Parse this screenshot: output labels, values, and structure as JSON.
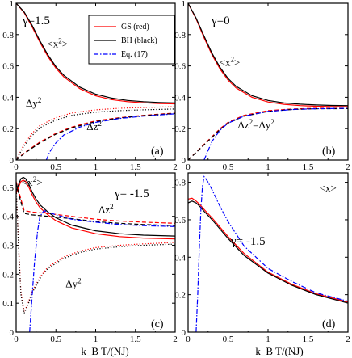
{
  "xlabel": "k_B T/(NJ)",
  "legend": [
    {
      "label": "GS (red)",
      "color": "#ff0000",
      "dash": "solid"
    },
    {
      "label": "BH (black)",
      "color": "#000000",
      "dash": "solid"
    },
    {
      "label": "Eq. (17)",
      "color": "#0000ff",
      "dash": "dashdot"
    }
  ],
  "chart_data": [
    {
      "type": "line",
      "panel": "(a)",
      "gamma_text": "γ=1.5",
      "xlim": [
        0,
        2
      ],
      "ylim": [
        0,
        1
      ],
      "xticks": [
        "0",
        "0.5",
        "1",
        "1.5",
        "2"
      ],
      "yticks": [
        "0",
        "0.2",
        "0.4",
        "0.6",
        "0.8",
        "1"
      ],
      "legend_position": "top-right",
      "annotations": [
        {
          "text": "<x²>",
          "x": 0.52,
          "y": 0.72
        },
        {
          "text": "Δy²",
          "x": 0.22,
          "y": 0.34
        },
        {
          "text": "Δz²",
          "x": 0.98,
          "y": 0.19
        }
      ],
      "series": [
        {
          "name": "<x²> GS",
          "color": "#ff0000",
          "dash": "solid",
          "x": [
            0,
            0.1,
            0.2,
            0.3,
            0.4,
            0.5,
            0.6,
            0.8,
            1.0,
            1.2,
            1.4,
            1.6,
            1.8,
            2.0
          ],
          "y": [
            1.0,
            0.94,
            0.85,
            0.75,
            0.66,
            0.585,
            0.53,
            0.455,
            0.41,
            0.385,
            0.372,
            0.365,
            0.36,
            0.358
          ]
        },
        {
          "name": "<x²> BH",
          "color": "#000000",
          "dash": "solid",
          "x": [
            0,
            0.1,
            0.2,
            0.3,
            0.4,
            0.5,
            0.6,
            0.8,
            1.0,
            1.2,
            1.4,
            1.6,
            1.8,
            2.0
          ],
          "y": [
            1.0,
            0.945,
            0.86,
            0.76,
            0.67,
            0.595,
            0.54,
            0.465,
            0.42,
            0.395,
            0.38,
            0.372,
            0.367,
            0.364
          ]
        },
        {
          "name": "Δy² GS",
          "color": "#ff0000",
          "dash": "dot",
          "x": [
            0,
            0.1,
            0.2,
            0.3,
            0.5,
            0.7,
            1.0,
            1.3,
            1.6,
            2.0
          ],
          "y": [
            0,
            0.1,
            0.17,
            0.22,
            0.27,
            0.3,
            0.32,
            0.33,
            0.335,
            0.34
          ]
        },
        {
          "name": "Δy² BH",
          "color": "#000000",
          "dash": "dot",
          "x": [
            0,
            0.1,
            0.2,
            0.3,
            0.5,
            0.7,
            1.0,
            1.3,
            1.6,
            2.0
          ],
          "y": [
            0,
            0.09,
            0.155,
            0.205,
            0.255,
            0.285,
            0.305,
            0.315,
            0.32,
            0.325
          ]
        },
        {
          "name": "Δz² GS",
          "color": "#ff0000",
          "dash": "dash",
          "x": [
            0,
            0.1,
            0.2,
            0.3,
            0.5,
            0.7,
            1.0,
            1.3,
            1.6,
            2.0
          ],
          "y": [
            0,
            0.045,
            0.08,
            0.115,
            0.17,
            0.21,
            0.25,
            0.27,
            0.285,
            0.3
          ]
        },
        {
          "name": "Δz² BH",
          "color": "#000000",
          "dash": "dash",
          "x": [
            0,
            0.1,
            0.2,
            0.3,
            0.5,
            0.7,
            1.0,
            1.3,
            1.6,
            2.0
          ],
          "y": [
            0,
            0.04,
            0.075,
            0.11,
            0.165,
            0.205,
            0.245,
            0.268,
            0.283,
            0.297
          ]
        },
        {
          "name": "Δz² Eq. (17)",
          "color": "#0000ff",
          "dash": "dashdot",
          "x": [
            0.38,
            0.42,
            0.5,
            0.6,
            0.8,
            1.0,
            1.3,
            1.6,
            2.0
          ],
          "y": [
            0,
            0.05,
            0.11,
            0.16,
            0.21,
            0.24,
            0.265,
            0.28,
            0.295
          ]
        }
      ]
    },
    {
      "type": "line",
      "panel": "(b)",
      "gamma_text": "γ=0",
      "xlim": [
        0,
        2
      ],
      "ylim": [
        0,
        1
      ],
      "xticks": [
        "0",
        "0.5",
        "1",
        "1.5",
        "2"
      ],
      "yticks": [
        "0",
        "0.2",
        "0.4",
        "0.6",
        "0.8",
        "1"
      ],
      "annotations": [
        {
          "text": "<x²>",
          "x": 0.52,
          "y": 0.6
        },
        {
          "text": "Δz²=Δy²",
          "x": 0.85,
          "y": 0.2
        }
      ],
      "series": [
        {
          "name": "<x²> GS",
          "color": "#ff0000",
          "dash": "solid",
          "x": [
            0,
            0.1,
            0.2,
            0.3,
            0.4,
            0.5,
            0.6,
            0.8,
            1.0,
            1.2,
            1.4,
            1.6,
            1.8,
            2.0
          ],
          "y": [
            1.0,
            0.9,
            0.78,
            0.67,
            0.58,
            0.51,
            0.46,
            0.4,
            0.37,
            0.355,
            0.347,
            0.343,
            0.341,
            0.34
          ]
        },
        {
          "name": "<x²> BH",
          "color": "#000000",
          "dash": "solid",
          "x": [
            0,
            0.1,
            0.2,
            0.3,
            0.4,
            0.5,
            0.6,
            0.8,
            1.0,
            1.2,
            1.4,
            1.6,
            1.8,
            2.0
          ],
          "y": [
            1.0,
            0.905,
            0.79,
            0.68,
            0.59,
            0.52,
            0.47,
            0.41,
            0.38,
            0.364,
            0.356,
            0.351,
            0.348,
            0.347
          ]
        },
        {
          "name": "Δz²=Δy² GS",
          "color": "#ff0000",
          "dash": "dash",
          "x": [
            0,
            0.1,
            0.2,
            0.3,
            0.4,
            0.5,
            0.7,
            1.0,
            1.3,
            1.6,
            2.0
          ],
          "y": [
            0,
            0.05,
            0.1,
            0.15,
            0.2,
            0.24,
            0.285,
            0.315,
            0.325,
            0.33,
            0.33
          ]
        },
        {
          "name": "Δz²=Δy² BH",
          "color": "#000000",
          "dash": "dash",
          "x": [
            0,
            0.1,
            0.2,
            0.3,
            0.4,
            0.5,
            0.7,
            1.0,
            1.3,
            1.6,
            2.0
          ],
          "y": [
            0,
            0.048,
            0.097,
            0.145,
            0.195,
            0.235,
            0.28,
            0.31,
            0.322,
            0.327,
            0.328
          ]
        },
        {
          "name": "Eq. (17)",
          "color": "#0000ff",
          "dash": "dashdot",
          "x": [
            0.2,
            0.3,
            0.4,
            0.5,
            0.7,
            1.0,
            1.3,
            1.6,
            2.0
          ],
          "y": [
            0.0,
            0.12,
            0.19,
            0.235,
            0.28,
            0.31,
            0.322,
            0.327,
            0.33
          ]
        }
      ]
    },
    {
      "type": "line",
      "panel": "(c)",
      "gamma_text": "γ= -1.5",
      "xlim": [
        0,
        2
      ],
      "ylim": [
        0,
        0.55
      ],
      "xticks": [
        "0",
        "0.5",
        "1",
        "1.5",
        "2"
      ],
      "yticks": [
        "0",
        "0.1",
        "0.2",
        "0.3",
        "0.4",
        "0.5"
      ],
      "annotations": [
        {
          "text": "<x²>",
          "x": 0.2,
          "y": 0.505
        },
        {
          "text": "Δz²",
          "x": 1.13,
          "y": 0.41
        },
        {
          "text": "Δy²",
          "x": 0.72,
          "y": 0.155
        }
      ],
      "series": [
        {
          "name": "<x²> GS",
          "color": "#ff0000",
          "dash": "solid",
          "x": [
            0,
            0.03,
            0.06,
            0.09,
            0.12,
            0.16,
            0.2,
            0.25,
            0.3,
            0.4,
            0.5,
            0.7,
            1.0,
            1.3,
            1.6,
            2.0
          ],
          "y": [
            0.48,
            0.5,
            0.52,
            0.525,
            0.52,
            0.5,
            0.475,
            0.45,
            0.43,
            0.405,
            0.385,
            0.36,
            0.34,
            0.33,
            0.325,
            0.322
          ]
        },
        {
          "name": "<x²> BH",
          "color": "#000000",
          "dash": "solid",
          "x": [
            0,
            0.03,
            0.06,
            0.09,
            0.12,
            0.16,
            0.2,
            0.25,
            0.3,
            0.4,
            0.5,
            0.7,
            1.0,
            1.3,
            1.6,
            2.0
          ],
          "y": [
            0.485,
            0.51,
            0.53,
            0.535,
            0.53,
            0.51,
            0.485,
            0.46,
            0.44,
            0.415,
            0.395,
            0.37,
            0.35,
            0.34,
            0.335,
            0.332
          ]
        },
        {
          "name": "Δz² GS",
          "color": "#ff0000",
          "dash": "dash",
          "x": [
            0,
            0.05,
            0.1,
            0.2,
            0.4,
            0.7,
            1.0,
            1.3,
            1.6,
            2.0
          ],
          "y": [
            0.52,
            0.47,
            0.42,
            0.415,
            0.41,
            0.4,
            0.39,
            0.384,
            0.38,
            0.376
          ]
        },
        {
          "name": "Δz² BH",
          "color": "#000000",
          "dash": "dash",
          "x": [
            0,
            0.05,
            0.1,
            0.2,
            0.4,
            0.7,
            1.0,
            1.3,
            1.6,
            2.0
          ],
          "y": [
            0.515,
            0.46,
            0.41,
            0.405,
            0.4,
            0.392,
            0.382,
            0.376,
            0.372,
            0.368
          ]
        },
        {
          "name": "Δy² GS",
          "color": "#ff0000",
          "dash": "dot",
          "x": [
            0,
            0.03,
            0.06,
            0.1,
            0.15,
            0.2,
            0.3,
            0.4,
            0.6,
            0.8,
            1.0,
            1.3,
            1.6,
            2.0
          ],
          "y": [
            0.5,
            0.3,
            0.14,
            0.07,
            0.1,
            0.14,
            0.19,
            0.225,
            0.26,
            0.28,
            0.292,
            0.3,
            0.305,
            0.31
          ]
        },
        {
          "name": "Δy² BH",
          "color": "#000000",
          "dash": "dot",
          "x": [
            0,
            0.03,
            0.06,
            0.1,
            0.15,
            0.2,
            0.3,
            0.4,
            0.6,
            0.8,
            1.0,
            1.3,
            1.6,
            2.0
          ],
          "y": [
            0.5,
            0.29,
            0.13,
            0.065,
            0.095,
            0.135,
            0.185,
            0.22,
            0.255,
            0.275,
            0.287,
            0.295,
            0.3,
            0.304
          ]
        },
        {
          "name": "Eq. (17)",
          "color": "#0000ff",
          "dash": "dashdot",
          "x": [
            0.17,
            0.2,
            0.23,
            0.27,
            0.3,
            0.35,
            0.4,
            0.5,
            0.7,
            1.0,
            1.3,
            1.6,
            2.0
          ],
          "y": [
            0.0,
            0.12,
            0.24,
            0.35,
            0.4,
            0.42,
            0.415,
            0.405,
            0.39,
            0.38,
            0.372,
            0.368,
            0.365
          ]
        }
      ]
    },
    {
      "type": "line",
      "panel": "(d)",
      "gamma_text": "γ= -1.5",
      "xlim": [
        0,
        2
      ],
      "ylim": [
        0,
        0.85
      ],
      "xticks": [
        "0",
        "0.5",
        "1",
        "1.5",
        "2"
      ],
      "yticks": [
        "0",
        "0.2",
        "0.4",
        "0.6",
        "0.8"
      ],
      "annotations": [
        {
          "text": "<x>",
          "x": 1.75,
          "y": 0.75
        }
      ],
      "series": [
        {
          "name": "<x> GS",
          "color": "#ff0000",
          "dash": "solid",
          "x": [
            0,
            0.05,
            0.1,
            0.15,
            0.2,
            0.3,
            0.4,
            0.5,
            0.7,
            1.0,
            1.3,
            1.6,
            2.0
          ],
          "y": [
            0.71,
            0.715,
            0.7,
            0.68,
            0.655,
            0.61,
            0.56,
            0.51,
            0.42,
            0.32,
            0.255,
            0.205,
            0.16
          ]
        },
        {
          "name": "<x> BH",
          "color": "#000000",
          "dash": "solid",
          "x": [
            0,
            0.05,
            0.1,
            0.15,
            0.2,
            0.3,
            0.4,
            0.5,
            0.7,
            1.0,
            1.3,
            1.6,
            2.0
          ],
          "y": [
            0.69,
            0.7,
            0.69,
            0.67,
            0.645,
            0.6,
            0.55,
            0.5,
            0.41,
            0.315,
            0.25,
            0.2,
            0.155
          ]
        },
        {
          "name": "Eq. (17)",
          "color": "#0000ff",
          "dash": "dashdot",
          "x": [
            0.1,
            0.12,
            0.14,
            0.16,
            0.18,
            0.2,
            0.22,
            0.25,
            0.3,
            0.4,
            0.5,
            0.7,
            1.0,
            1.3,
            1.6,
            2.0
          ],
          "y": [
            0.0,
            0.2,
            0.45,
            0.65,
            0.78,
            0.83,
            0.82,
            0.8,
            0.76,
            0.67,
            0.59,
            0.46,
            0.34,
            0.27,
            0.21,
            0.165
          ]
        }
      ]
    }
  ]
}
